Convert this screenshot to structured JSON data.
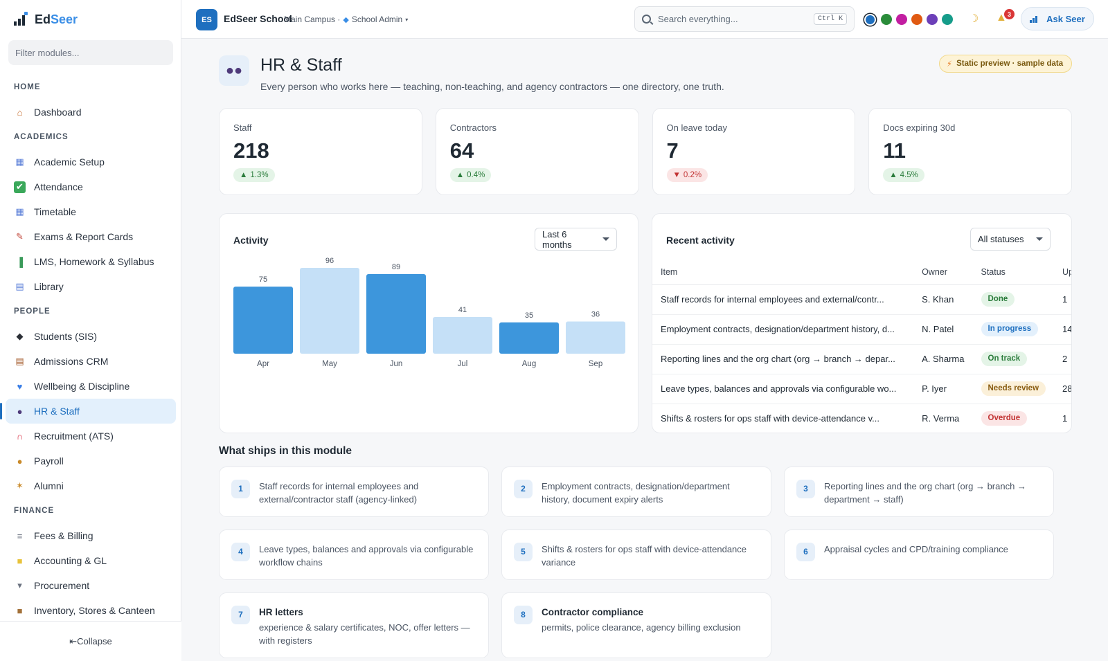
{
  "brand": {
    "name_part1": "Ed",
    "name_part2": "Seer"
  },
  "sidebar": {
    "filter_placeholder": "Filter modules...",
    "sections": [
      {
        "title": "HOME",
        "items": [
          {
            "label": "Dashboard",
            "icon": "home-icon"
          }
        ]
      },
      {
        "title": "ACADEMICS",
        "items": [
          {
            "label": "Academic Setup",
            "icon": "calendar-icon"
          },
          {
            "label": "Attendance",
            "icon": "checkbox-icon"
          },
          {
            "label": "Timetable",
            "icon": "calendar-icon"
          },
          {
            "label": "Exams & Report Cards",
            "icon": "memo-icon"
          },
          {
            "label": "LMS, Homework & Syllabus",
            "icon": "books-icon"
          },
          {
            "label": "Library",
            "icon": "open-book-icon"
          }
        ]
      },
      {
        "title": "PEOPLE",
        "items": [
          {
            "label": "Students (SIS)",
            "icon": "graduation-cap-icon"
          },
          {
            "label": "Admissions CRM",
            "icon": "clipboard-icon"
          },
          {
            "label": "Wellbeing & Discipline",
            "icon": "heart-icon"
          },
          {
            "label": "HR & Staff",
            "icon": "people-icon",
            "active": true
          },
          {
            "label": "Recruitment (ATS)",
            "icon": "magnet-icon"
          },
          {
            "label": "Payroll",
            "icon": "money-bag-icon"
          },
          {
            "label": "Alumni",
            "icon": "medal-icon"
          }
        ]
      },
      {
        "title": "FINANCE",
        "items": [
          {
            "label": "Fees & Billing",
            "icon": "receipt-icon"
          },
          {
            "label": "Accounting & GL",
            "icon": "ledger-icon"
          },
          {
            "label": "Procurement",
            "icon": "cart-icon"
          },
          {
            "label": "Inventory, Stores & Canteen",
            "icon": "package-icon"
          }
        ]
      }
    ],
    "collapse_label": "⇤Collapse"
  },
  "topbar": {
    "badge": "ES",
    "school": "EdSeer School",
    "campus": "Main Campus ·",
    "role": "School Admin",
    "role_caret": "▾",
    "search_placeholder": "Search everything...",
    "search_shortcut": "Ctrl K",
    "theme_colors": [
      "#1e6fbf",
      "#2a8c3a",
      "#c21ea1",
      "#e05a12",
      "#6c3fb8",
      "#169c8a"
    ],
    "notification_count": "3",
    "ask_label": "Ask Seer"
  },
  "page": {
    "icon": "people-icon",
    "title": "HR & Staff",
    "subtitle": "Every person who works here — teaching, non-teaching, and agency contractors — one directory, one truth.",
    "preview_badge": "Static preview · sample data"
  },
  "kpis": [
    {
      "label": "Staff",
      "value": "218",
      "delta": "1.3%",
      "direction": "up"
    },
    {
      "label": "Contractors",
      "value": "64",
      "delta": "0.4%",
      "direction": "up"
    },
    {
      "label": "On leave today",
      "value": "7",
      "delta": "0.2%",
      "direction": "down"
    },
    {
      "label": "Docs expiring 30d",
      "value": "11",
      "delta": "4.5%",
      "direction": "up"
    }
  ],
  "activity": {
    "title": "Activity",
    "range_selected": "Last 6 months"
  },
  "chart_data": {
    "type": "bar",
    "categories": [
      "Apr",
      "May",
      "Jun",
      "Jul",
      "Aug",
      "Sep"
    ],
    "values": [
      75,
      96,
      89,
      41,
      35,
      36
    ],
    "colors": [
      "#3d96dc",
      "#c5e0f7",
      "#3d96dc",
      "#c5e0f7",
      "#3d96dc",
      "#c5e0f7"
    ],
    "title": "Activity",
    "ylim": [
      0,
      96
    ],
    "grid": false,
    "data_labels": true
  },
  "recent": {
    "title": "Recent activity",
    "filter_selected": "All statuses",
    "columns": [
      "Item",
      "Owner",
      "Status",
      "Up"
    ],
    "rows": [
      {
        "item": "Staff records for internal employees and external/contr...",
        "owner": "S. Khan",
        "status": "Done",
        "updated": "1"
      },
      {
        "item": "Employment contracts, designation/department history, d...",
        "owner": "N. Patel",
        "status": "In progress",
        "updated": "14"
      },
      {
        "item": "Reporting lines and the org chart (org → branch → depar...",
        "owner": "A. Sharma",
        "status": "On track",
        "updated": "2"
      },
      {
        "item": "Leave types, balances and approvals via configurable wo...",
        "owner": "P. Iyer",
        "status": "Needs review",
        "updated": "28"
      },
      {
        "item": "Shifts & rosters for ops staff with device-attendance v...",
        "owner": "R. Verma",
        "status": "Overdue",
        "updated": "1"
      }
    ],
    "status_colors": {
      "Done": {
        "bg": "#e4f4e7",
        "fg": "#2a7c3b"
      },
      "In progress": {
        "bg": "#e3f0fc",
        "fg": "#1e6fbf"
      },
      "On track": {
        "bg": "#e4f4e7",
        "fg": "#2a7c3b"
      },
      "Needs review": {
        "bg": "#fbf0d9",
        "fg": "#8a5d12"
      },
      "Overdue": {
        "bg": "#fbe5e5",
        "fg": "#c23333"
      }
    }
  },
  "ships": {
    "title": "What ships in this module",
    "features": [
      {
        "num": "1",
        "title": "",
        "text": "Staff records for internal employees and external/contractor staff (agency-linked)"
      },
      {
        "num": "2",
        "title": "",
        "text": "Employment contracts, designation/department history, document expiry alerts"
      },
      {
        "num": "3",
        "title": "",
        "text": "Reporting lines and the org chart (org → branch → department → staff)"
      },
      {
        "num": "4",
        "title": "",
        "text": "Leave types, balances and approvals via configurable workflow chains"
      },
      {
        "num": "5",
        "title": "",
        "text": "Shifts & rosters for ops staff with device-attendance variance"
      },
      {
        "num": "6",
        "title": "",
        "text": "Appraisal cycles and CPD/training compliance"
      },
      {
        "num": "7",
        "title": "HR letters",
        "text": "experience & salary certificates, NOC, offer letters — with registers"
      },
      {
        "num": "8",
        "title": "Contractor compliance",
        "text": "permits, police clearance, agency billing exclusion"
      }
    ]
  }
}
